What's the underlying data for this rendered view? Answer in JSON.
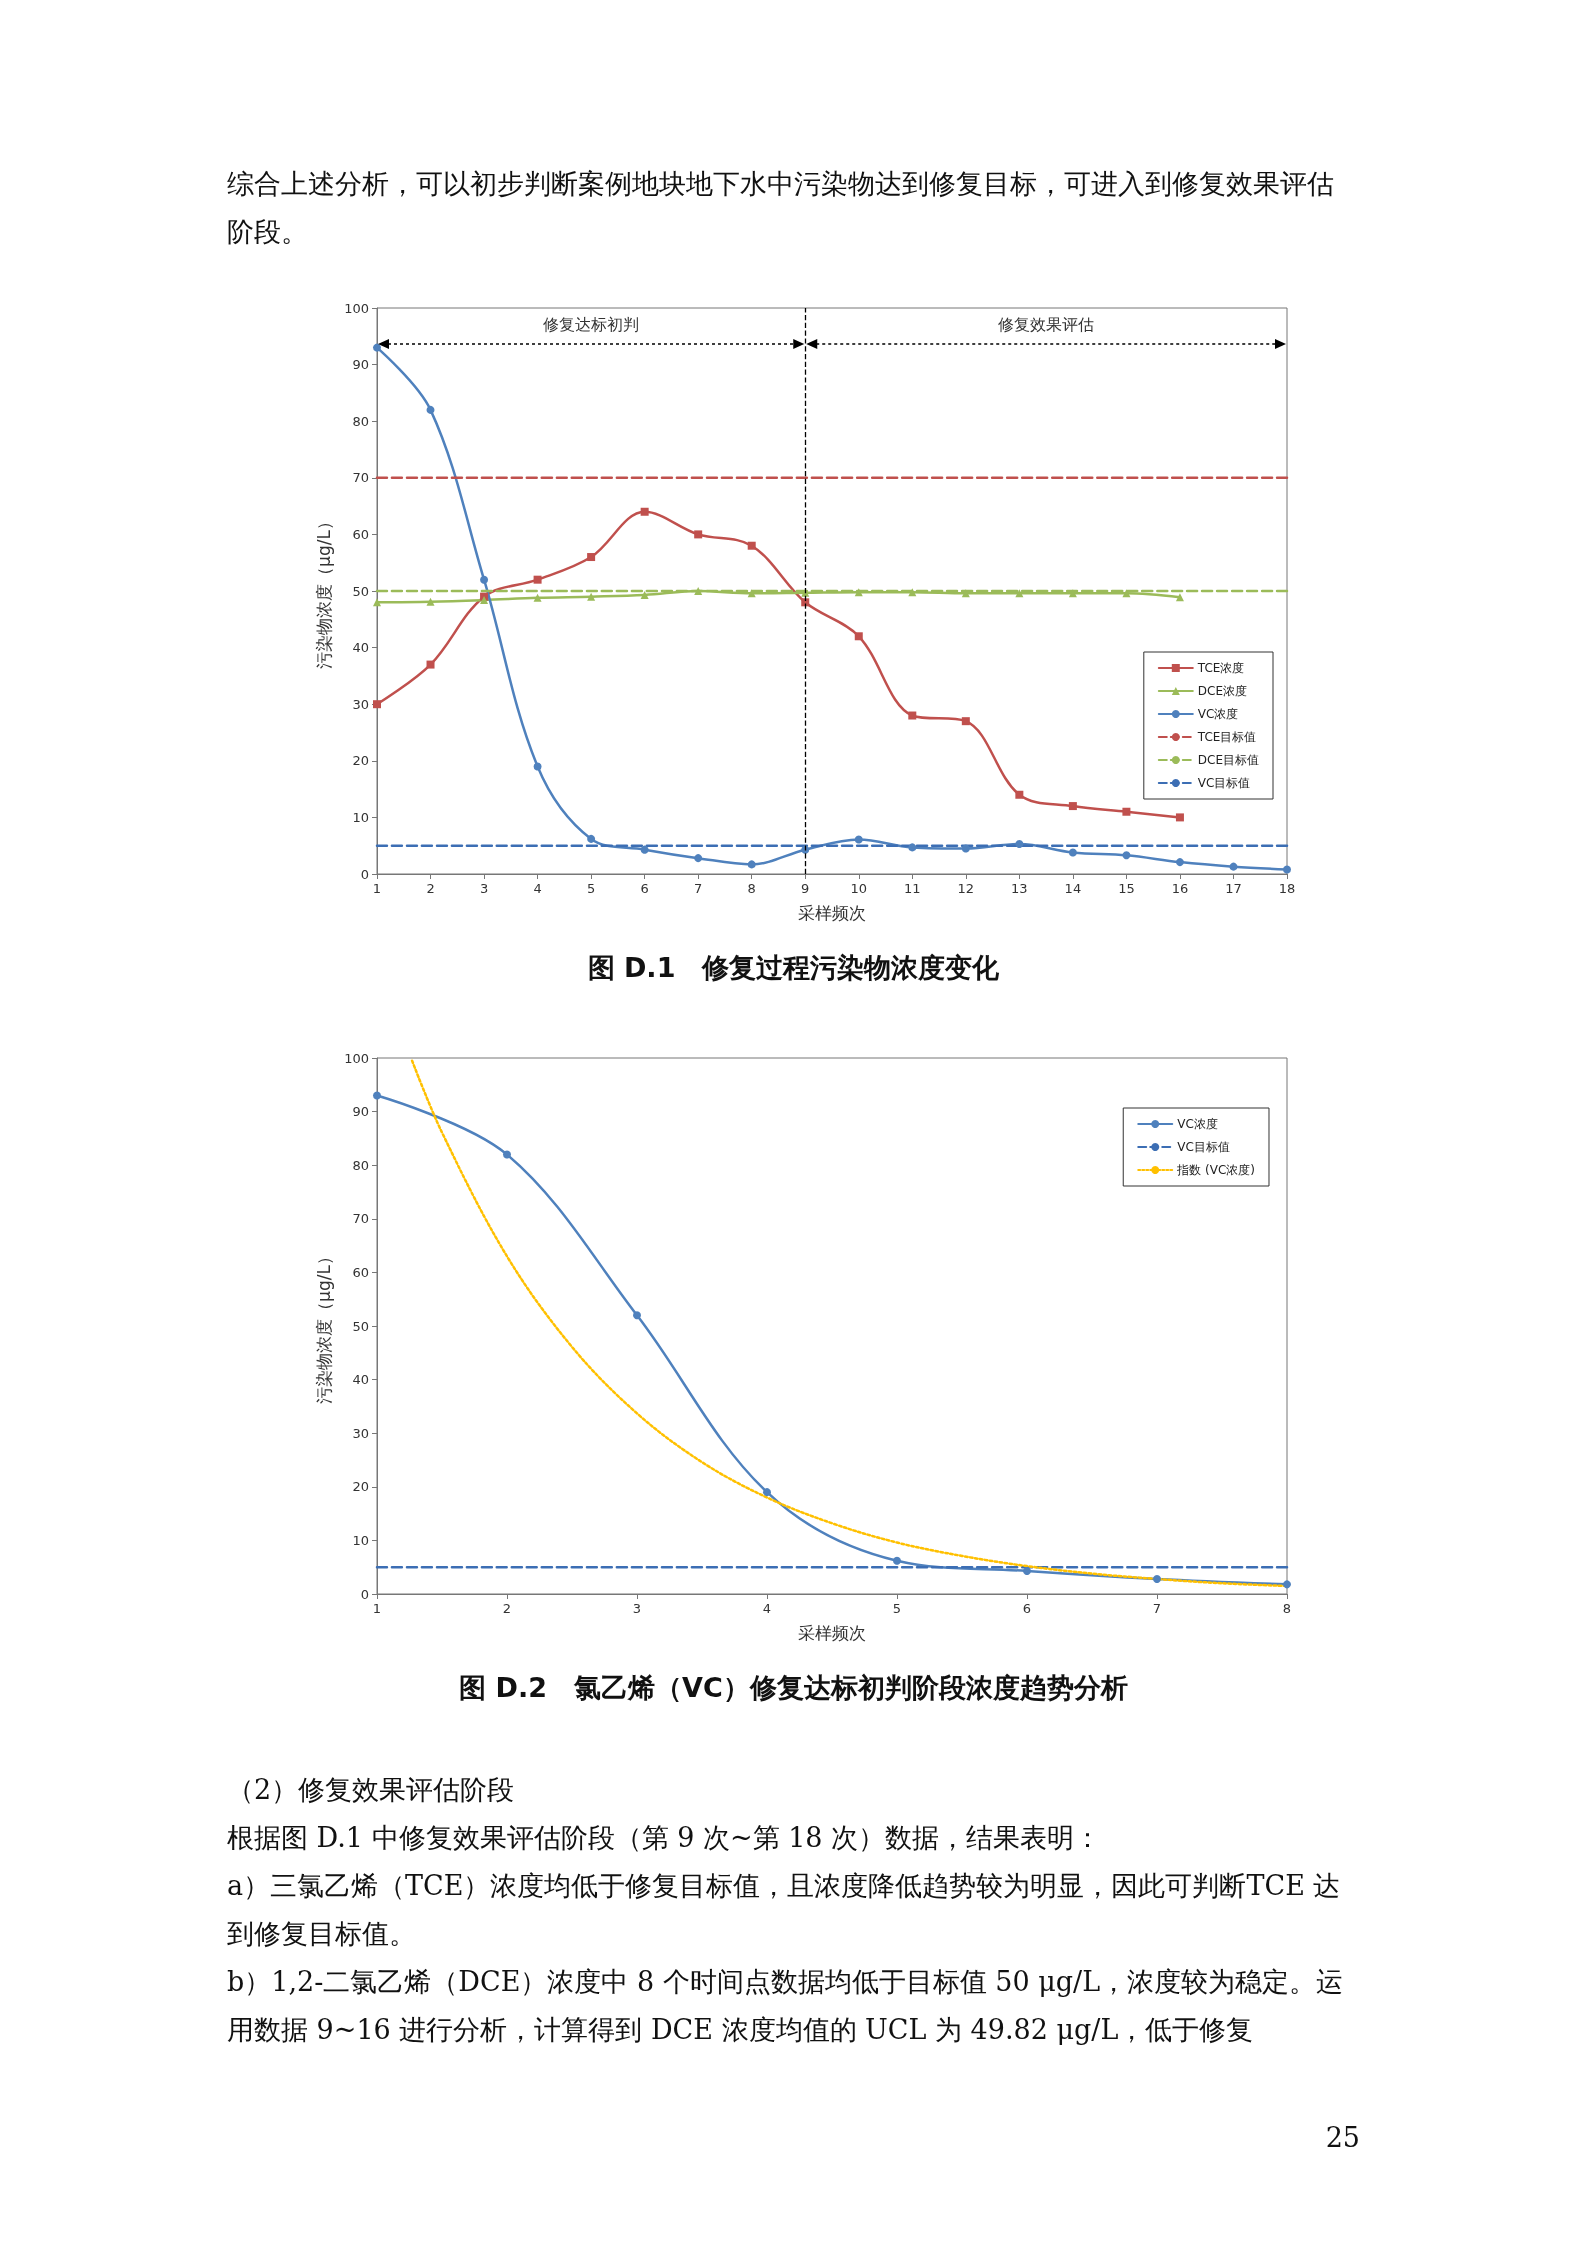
{
  "chart_data": [
    {
      "type": "line",
      "title": "图 D.1　修复过程污染物浓度变化",
      "xlabel": "采样频次",
      "ylabel": "污染物浓度（μg/L）",
      "xlim": [
        1,
        18
      ],
      "xticks": [
        1,
        2,
        3,
        4,
        5,
        6,
        7,
        8,
        9,
        10,
        11,
        12,
        13,
        14,
        15,
        16,
        17,
        18
      ],
      "ylim": [
        0,
        100
      ],
      "yticks": [
        0,
        10,
        20,
        30,
        40,
        50,
        60,
        70,
        80,
        90,
        100
      ],
      "legend": "bottom right",
      "series": [
        {
          "name": "TCE浓度",
          "color": "#c0504d",
          "marker": "square",
          "line_style": "solid",
          "x": [
            1,
            2,
            3,
            4,
            5,
            6,
            7,
            8,
            9,
            10,
            11,
            12,
            13,
            14,
            15,
            16
          ],
          "values": [
            30,
            37,
            49,
            52,
            56,
            64,
            60,
            58,
            48,
            42,
            28,
            27,
            14,
            12,
            11,
            10
          ]
        },
        {
          "name": "DCE浓度",
          "color": "#9bbb59",
          "marker": "triangle",
          "line_style": "solid",
          "x": [
            1,
            2,
            3,
            4,
            5,
            6,
            7,
            8,
            9,
            10,
            11,
            12,
            13,
            14,
            15,
            16
          ],
          "values": [
            48,
            48.1,
            48.4,
            48.8,
            49,
            49.3,
            50,
            49.6,
            49.7,
            49.8,
            49.8,
            49.6,
            49.6,
            49.6,
            49.6,
            48.9
          ]
        },
        {
          "name": "VC浓度",
          "color": "#4f81bd",
          "marker": "circle",
          "line_style": "solid",
          "x": [
            1,
            2,
            3,
            4,
            5,
            6,
            7,
            8,
            9,
            10,
            11,
            12,
            13,
            14,
            15,
            16,
            17,
            18
          ],
          "values": [
            93,
            82,
            52,
            19,
            6.2,
            4.3,
            2.8,
            1.7,
            4.3,
            6.1,
            4.7,
            4.5,
            5.3,
            3.8,
            3.3,
            2.1,
            1.3,
            0.8
          ]
        },
        {
          "name": "TCE目标值",
          "color": "#c0504d",
          "marker": "none",
          "line_style": "dashed",
          "x": [
            1,
            18
          ],
          "values": [
            70,
            70
          ]
        },
        {
          "name": "DCE目标值",
          "color": "#9bbb59",
          "marker": "none",
          "line_style": "dashed",
          "x": [
            1,
            18
          ],
          "values": [
            50,
            50
          ]
        },
        {
          "name": "VC目标值",
          "color": "#3c6eb4",
          "marker": "none",
          "line_style": "dashed",
          "x": [
            1,
            18
          ],
          "values": [
            5,
            5
          ]
        }
      ],
      "ref_lines": [
        {
          "axis": "x",
          "value": 9,
          "color": "#000000",
          "line_style": "dashed"
        }
      ],
      "annotations": [
        "综合上述分析，可以初步判断案例地块地下水中污染物达到修复目标，可进入到修复效果评估阶段。",
        "修复达标初判",
        "修复效果评估"
      ]
    },
    {
      "type": "line",
      "title": "图 D.2　氯乙烯（VC）修复达标初判阶段浓度趋势分析",
      "xlabel": "采样频次",
      "ylabel": "污染物浓度（μg/L）",
      "xlim": [
        1,
        8
      ],
      "xticks": [
        1,
        2,
        3,
        4,
        5,
        6,
        7,
        8
      ],
      "ylim": [
        0,
        100
      ],
      "yticks": [
        0,
        10,
        20,
        30,
        40,
        50,
        60,
        70,
        80,
        90,
        100
      ],
      "legend": "top right",
      "series": [
        {
          "name": "VC浓度",
          "color": "#4f81bd",
          "marker": "circle",
          "line_style": "solid",
          "x": [
            1,
            2,
            3,
            4,
            5,
            6,
            7,
            8
          ],
          "values": [
            93,
            82,
            52,
            19,
            6.2,
            4.3,
            2.8,
            1.8
          ]
        },
        {
          "name": "VC目标值",
          "color": "#3c6eb4",
          "marker": "none",
          "line_style": "dashed",
          "x": [
            1,
            8
          ],
          "values": [
            5,
            5
          ]
        },
        {
          "name": "指数 (VC浓度)",
          "color": "#ffc000",
          "marker": "none",
          "line_style": "dotted",
          "x": [
            1.27,
            1.5,
            2,
            2.5,
            3,
            3.5,
            4,
            4.5,
            5,
            5.5,
            6,
            6.5,
            7,
            7.5,
            8
          ],
          "values": [
            99.5,
            86.1,
            63,
            46.1,
            33.7,
            24.6,
            18,
            13.2,
            9.6,
            7.1,
            5.2,
            3.8,
            2.8,
            2,
            1.5
          ]
        }
      ],
      "annotations": [
        "（2）修复效果评估阶段",
        "根据图 D.1 中修复效果评估阶段（第 9 次~第 18 次）数据，结果表明：",
        "a）三氯乙烯（TCE）浓度均低于修复目标值，且浓度降低趋势较为明显，因此可判断TCE 达到修复目标值。",
        "b）1,2-二氯乙烯（DCE）浓度中 8 个时间点数据均低于目标值 50 μg/L，浓度较为稳定。运用数据 9~16 进行分析，计算得到 DCE 浓度均值的 UCL 为 49.82 μg/L，低于修复",
        "25"
      ]
    }
  ]
}
